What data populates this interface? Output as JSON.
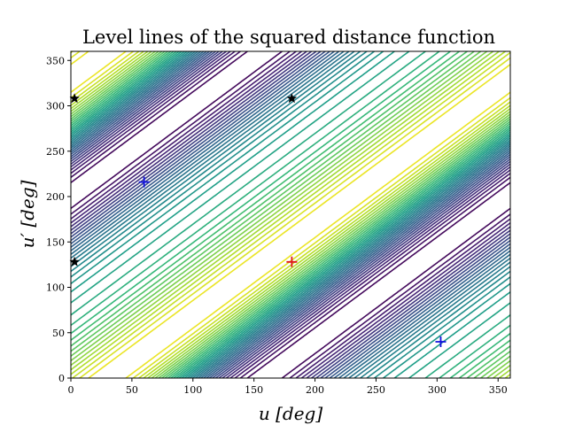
{
  "chart_data": {
    "type": "contour",
    "title": "Level lines of the squared distance function",
    "xlabel": "u [deg]",
    "ylabel": "u′ [deg]",
    "xlim": [
      0,
      360
    ],
    "ylim": [
      0,
      360
    ],
    "xticks": [
      0,
      50,
      100,
      150,
      200,
      250,
      300,
      350
    ],
    "yticks": [
      0,
      50,
      100,
      150,
      200,
      250,
      300,
      350
    ],
    "colormap": "viridis",
    "grid": false,
    "markers": [
      {
        "kind": "plus",
        "color": "#e0161c",
        "x": 181,
        "y": 128
      },
      {
        "kind": "plus",
        "color": "#1111dd",
        "x": 60,
        "y": 216
      },
      {
        "kind": "plus",
        "color": "#1111dd",
        "x": 303,
        "y": 40
      },
      {
        "kind": "star",
        "color": "#000000",
        "x": 3,
        "y": 308
      },
      {
        "kind": "star",
        "color": "#000000",
        "x": 3,
        "y": 128
      },
      {
        "kind": "star",
        "color": "#000000",
        "x": 181,
        "y": 308
      }
    ]
  }
}
